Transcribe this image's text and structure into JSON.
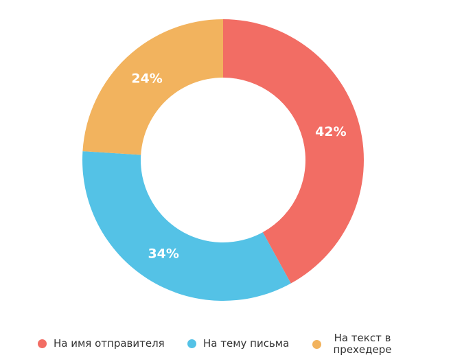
{
  "chart_data": {
    "type": "donut",
    "categories": [
      "На имя отправителя",
      "На тему письма",
      "На текст в прехедере"
    ],
    "values": [
      42,
      34,
      24
    ],
    "value_labels": [
      "42%",
      "34%",
      "24%"
    ],
    "colors": [
      "#f26d64",
      "#54c2e6",
      "#f2b35e"
    ]
  }
}
